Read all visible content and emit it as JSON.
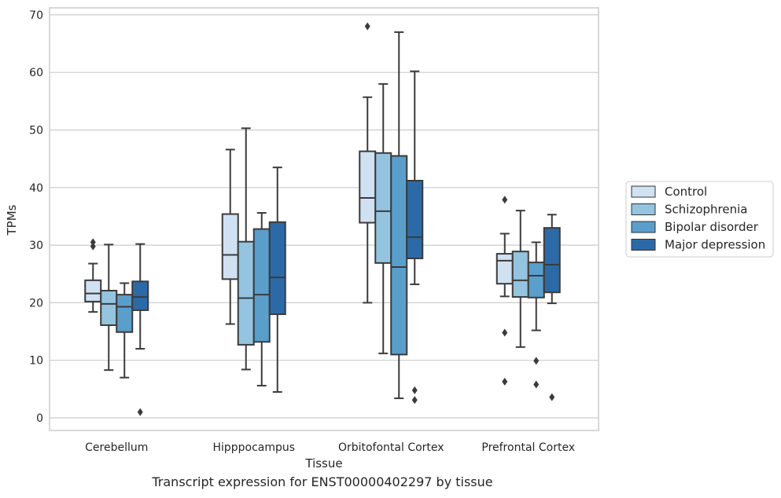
{
  "chart_data": {
    "type": "box",
    "title": "",
    "caption": "Transcript expression for ENST00000402297 by tissue",
    "xlabel": "Tissue",
    "ylabel": "TPMs",
    "ylim": [
      -2,
      71.5
    ],
    "yticks": [
      0,
      10,
      20,
      30,
      40,
      50,
      60,
      70
    ],
    "grid": "horizontal",
    "legend_position": "right",
    "categories": [
      "Cerebellum",
      "Hipppocampus",
      "Orbitofontal Cortex",
      "Prefrontal Cortex"
    ],
    "series": [
      {
        "name": "Control",
        "color": "#d0e1f2",
        "boxes": [
          {
            "whisker_low": 18.4,
            "q1": 20.2,
            "median": 21.6,
            "q3": 23.9,
            "whisker_high": 26.8,
            "outliers": [
              29.8,
              30.5
            ]
          },
          {
            "whisker_low": 16.3,
            "q1": 24.1,
            "median": 28.3,
            "q3": 35.4,
            "whisker_high": 46.6,
            "outliers": []
          },
          {
            "whisker_low": 20.0,
            "q1": 33.9,
            "median": 38.2,
            "q3": 46.3,
            "whisker_high": 55.7,
            "outliers": [
              68.0
            ]
          },
          {
            "whisker_low": 21.1,
            "q1": 23.3,
            "median": 27.3,
            "q3": 28.5,
            "whisker_high": 32.0,
            "outliers": [
              6.3,
              14.8,
              37.9
            ]
          }
        ]
      },
      {
        "name": "Schizophrenia",
        "color": "#94c4df",
        "boxes": [
          {
            "whisker_low": 8.3,
            "q1": 16.1,
            "median": 19.8,
            "q3": 22.1,
            "whisker_high": 30.1,
            "outliers": []
          },
          {
            "whisker_low": 8.4,
            "q1": 12.7,
            "median": 20.8,
            "q3": 30.6,
            "whisker_high": 50.3,
            "outliers": []
          },
          {
            "whisker_low": 11.2,
            "q1": 26.9,
            "median": 35.9,
            "q3": 46.0,
            "whisker_high": 58.0,
            "outliers": []
          },
          {
            "whisker_low": 12.3,
            "q1": 21.0,
            "median": 23.9,
            "q3": 28.9,
            "whisker_high": 36.0,
            "outliers": []
          }
        ]
      },
      {
        "name": "Bipolar disorder",
        "color": "#5a9ecb",
        "boxes": [
          {
            "whisker_low": 7.0,
            "q1": 14.9,
            "median": 19.3,
            "q3": 21.4,
            "whisker_high": 23.4,
            "outliers": []
          },
          {
            "whisker_low": 5.6,
            "q1": 13.2,
            "median": 21.4,
            "q3": 32.8,
            "whisker_high": 35.6,
            "outliers": []
          },
          {
            "whisker_low": 3.4,
            "q1": 11.0,
            "median": 26.2,
            "q3": 45.5,
            "whisker_high": 67.0,
            "outliers": []
          },
          {
            "whisker_low": 15.2,
            "q1": 20.9,
            "median": 24.7,
            "q3": 27.0,
            "whisker_high": 30.5,
            "outliers": [
              5.8,
              9.9
            ]
          }
        ]
      },
      {
        "name": "Major depression",
        "color": "#2c6aa7",
        "boxes": [
          {
            "whisker_low": 12.0,
            "q1": 18.7,
            "median": 21.0,
            "q3": 23.7,
            "whisker_high": 30.2,
            "outliers": [
              1.0
            ]
          },
          {
            "whisker_low": 4.5,
            "q1": 18.0,
            "median": 24.4,
            "q3": 34.0,
            "whisker_high": 43.5,
            "outliers": []
          },
          {
            "whisker_low": 23.2,
            "q1": 27.7,
            "median": 31.4,
            "q3": 41.2,
            "whisker_high": 60.2,
            "outliers": [
              3.1,
              4.8
            ]
          },
          {
            "whisker_low": 19.9,
            "q1": 21.8,
            "median": 26.6,
            "q3": 33.0,
            "whisker_high": 35.3,
            "outliers": [
              3.6
            ]
          }
        ]
      }
    ]
  }
}
